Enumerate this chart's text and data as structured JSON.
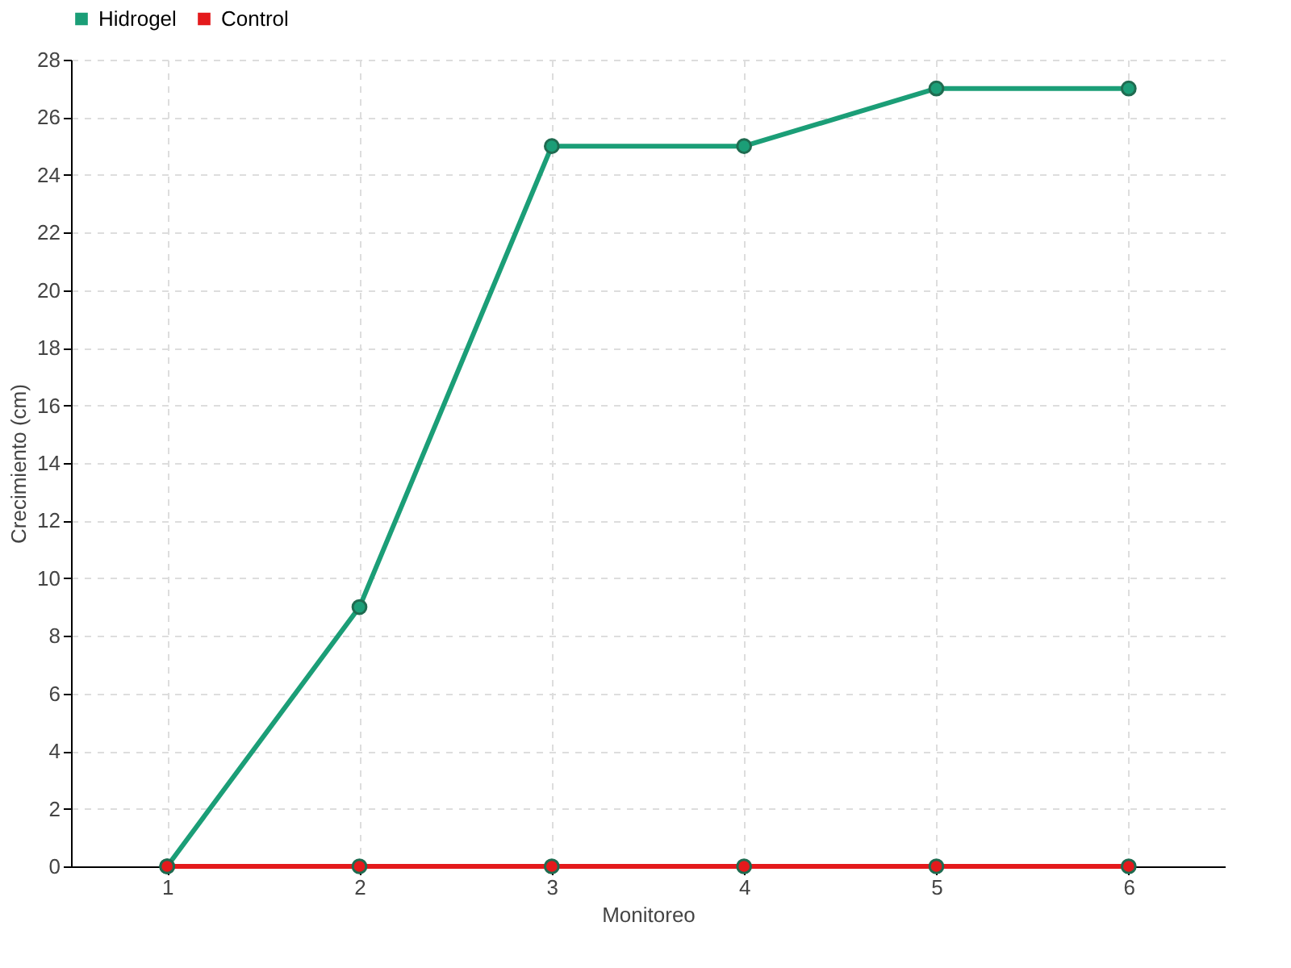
{
  "chart_data": {
    "type": "line",
    "xlabel": "Monitoreo",
    "ylabel": "Crecimiento (cm)",
    "categories": [
      "1",
      "2",
      "3",
      "4",
      "5",
      "6"
    ],
    "series": [
      {
        "name": "Hidrogel",
        "color": "#1b9e77",
        "values": [
          0,
          9,
          25,
          25,
          27,
          27
        ]
      },
      {
        "name": "Control",
        "color": "#e41a1c",
        "values": [
          0,
          0,
          0,
          0,
          0,
          0
        ]
      }
    ],
    "ylim": [
      0,
      28
    ],
    "yticks": [
      0,
      2,
      4,
      6,
      8,
      10,
      12,
      14,
      16,
      18,
      20,
      22,
      24,
      26,
      28
    ],
    "grid": true,
    "legend": "top left",
    "marker": "circle",
    "line_style": "solid"
  }
}
